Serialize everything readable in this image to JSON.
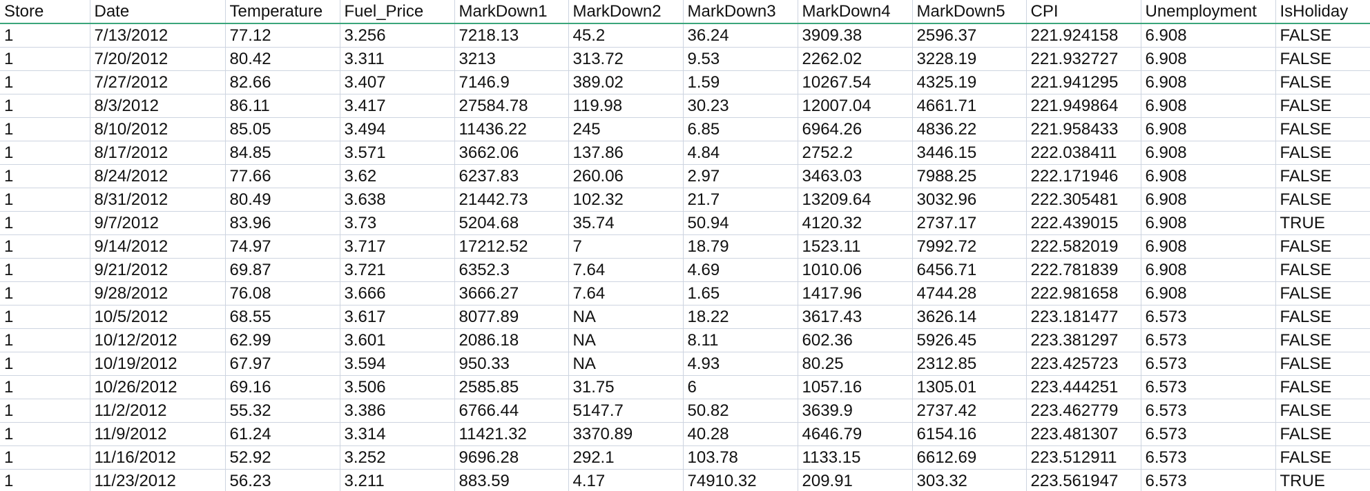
{
  "sheet": {
    "headers": [
      "Store",
      "Date",
      "Temperature",
      "Fuel_Price",
      "MarkDown1",
      "MarkDown2",
      "MarkDown3",
      "MarkDown4",
      "MarkDown5",
      "CPI",
      "Unemployment",
      "IsHoliday"
    ],
    "rows": [
      [
        "1",
        "7/13/2012",
        "77.12",
        "3.256",
        "7218.13",
        "45.2",
        "36.24",
        "3909.38",
        "2596.37",
        "221.924158",
        "6.908",
        "FALSE"
      ],
      [
        "1",
        "7/20/2012",
        "80.42",
        "3.311",
        "3213",
        "313.72",
        "9.53",
        "2262.02",
        "3228.19",
        "221.932727",
        "6.908",
        "FALSE"
      ],
      [
        "1",
        "7/27/2012",
        "82.66",
        "3.407",
        "7146.9",
        "389.02",
        "1.59",
        "10267.54",
        "4325.19",
        "221.941295",
        "6.908",
        "FALSE"
      ],
      [
        "1",
        "8/3/2012",
        "86.11",
        "3.417",
        "27584.78",
        "119.98",
        "30.23",
        "12007.04",
        "4661.71",
        "221.949864",
        "6.908",
        "FALSE"
      ],
      [
        "1",
        "8/10/2012",
        "85.05",
        "3.494",
        "11436.22",
        "245",
        "6.85",
        "6964.26",
        "4836.22",
        "221.958433",
        "6.908",
        "FALSE"
      ],
      [
        "1",
        "8/17/2012",
        "84.85",
        "3.571",
        "3662.06",
        "137.86",
        "4.84",
        "2752.2",
        "3446.15",
        "222.038411",
        "6.908",
        "FALSE"
      ],
      [
        "1",
        "8/24/2012",
        "77.66",
        "3.62",
        "6237.83",
        "260.06",
        "2.97",
        "3463.03",
        "7988.25",
        "222.171946",
        "6.908",
        "FALSE"
      ],
      [
        "1",
        "8/31/2012",
        "80.49",
        "3.638",
        "21442.73",
        "102.32",
        "21.7",
        "13209.64",
        "3032.96",
        "222.305481",
        "6.908",
        "FALSE"
      ],
      [
        "1",
        "9/7/2012",
        "83.96",
        "3.73",
        "5204.68",
        "35.74",
        "50.94",
        "4120.32",
        "2737.17",
        "222.439015",
        "6.908",
        "TRUE"
      ],
      [
        "1",
        "9/14/2012",
        "74.97",
        "3.717",
        "17212.52",
        "7",
        "18.79",
        "1523.11",
        "7992.72",
        "222.582019",
        "6.908",
        "FALSE"
      ],
      [
        "1",
        "9/21/2012",
        "69.87",
        "3.721",
        "6352.3",
        "7.64",
        "4.69",
        "1010.06",
        "6456.71",
        "222.781839",
        "6.908",
        "FALSE"
      ],
      [
        "1",
        "9/28/2012",
        "76.08",
        "3.666",
        "3666.27",
        "7.64",
        "1.65",
        "1417.96",
        "4744.28",
        "222.981658",
        "6.908",
        "FALSE"
      ],
      [
        "1",
        "10/5/2012",
        "68.55",
        "3.617",
        "8077.89",
        "NA",
        "18.22",
        "3617.43",
        "3626.14",
        "223.181477",
        "6.573",
        "FALSE"
      ],
      [
        "1",
        "10/12/2012",
        "62.99",
        "3.601",
        "2086.18",
        "NA",
        "8.11",
        "602.36",
        "5926.45",
        "223.381297",
        "6.573",
        "FALSE"
      ],
      [
        "1",
        "10/19/2012",
        "67.97",
        "3.594",
        "950.33",
        "NA",
        "4.93",
        "80.25",
        "2312.85",
        "223.425723",
        "6.573",
        "FALSE"
      ],
      [
        "1",
        "10/26/2012",
        "69.16",
        "3.506",
        "2585.85",
        "31.75",
        "6",
        "1057.16",
        "1305.01",
        "223.444251",
        "6.573",
        "FALSE"
      ],
      [
        "1",
        "11/2/2012",
        "55.32",
        "3.386",
        "6766.44",
        "5147.7",
        "50.82",
        "3639.9",
        "2737.42",
        "223.462779",
        "6.573",
        "FALSE"
      ],
      [
        "1",
        "11/9/2012",
        "61.24",
        "3.314",
        "11421.32",
        "3370.89",
        "40.28",
        "4646.79",
        "6154.16",
        "223.481307",
        "6.573",
        "FALSE"
      ],
      [
        "1",
        "11/16/2012",
        "52.92",
        "3.252",
        "9696.28",
        "292.1",
        "103.78",
        "1133.15",
        "6612.69",
        "223.512911",
        "6.573",
        "FALSE"
      ],
      [
        "1",
        "11/23/2012",
        "56.23",
        "3.211",
        "883.59",
        "4.17",
        "74910.32",
        "209.91",
        "303.32",
        "223.561947",
        "6.573",
        "TRUE"
      ]
    ],
    "colors": {
      "header_rule": "#3aa57b",
      "grid_line": "#cdd4e0",
      "text": "#111111",
      "background": "#ffffff"
    }
  }
}
